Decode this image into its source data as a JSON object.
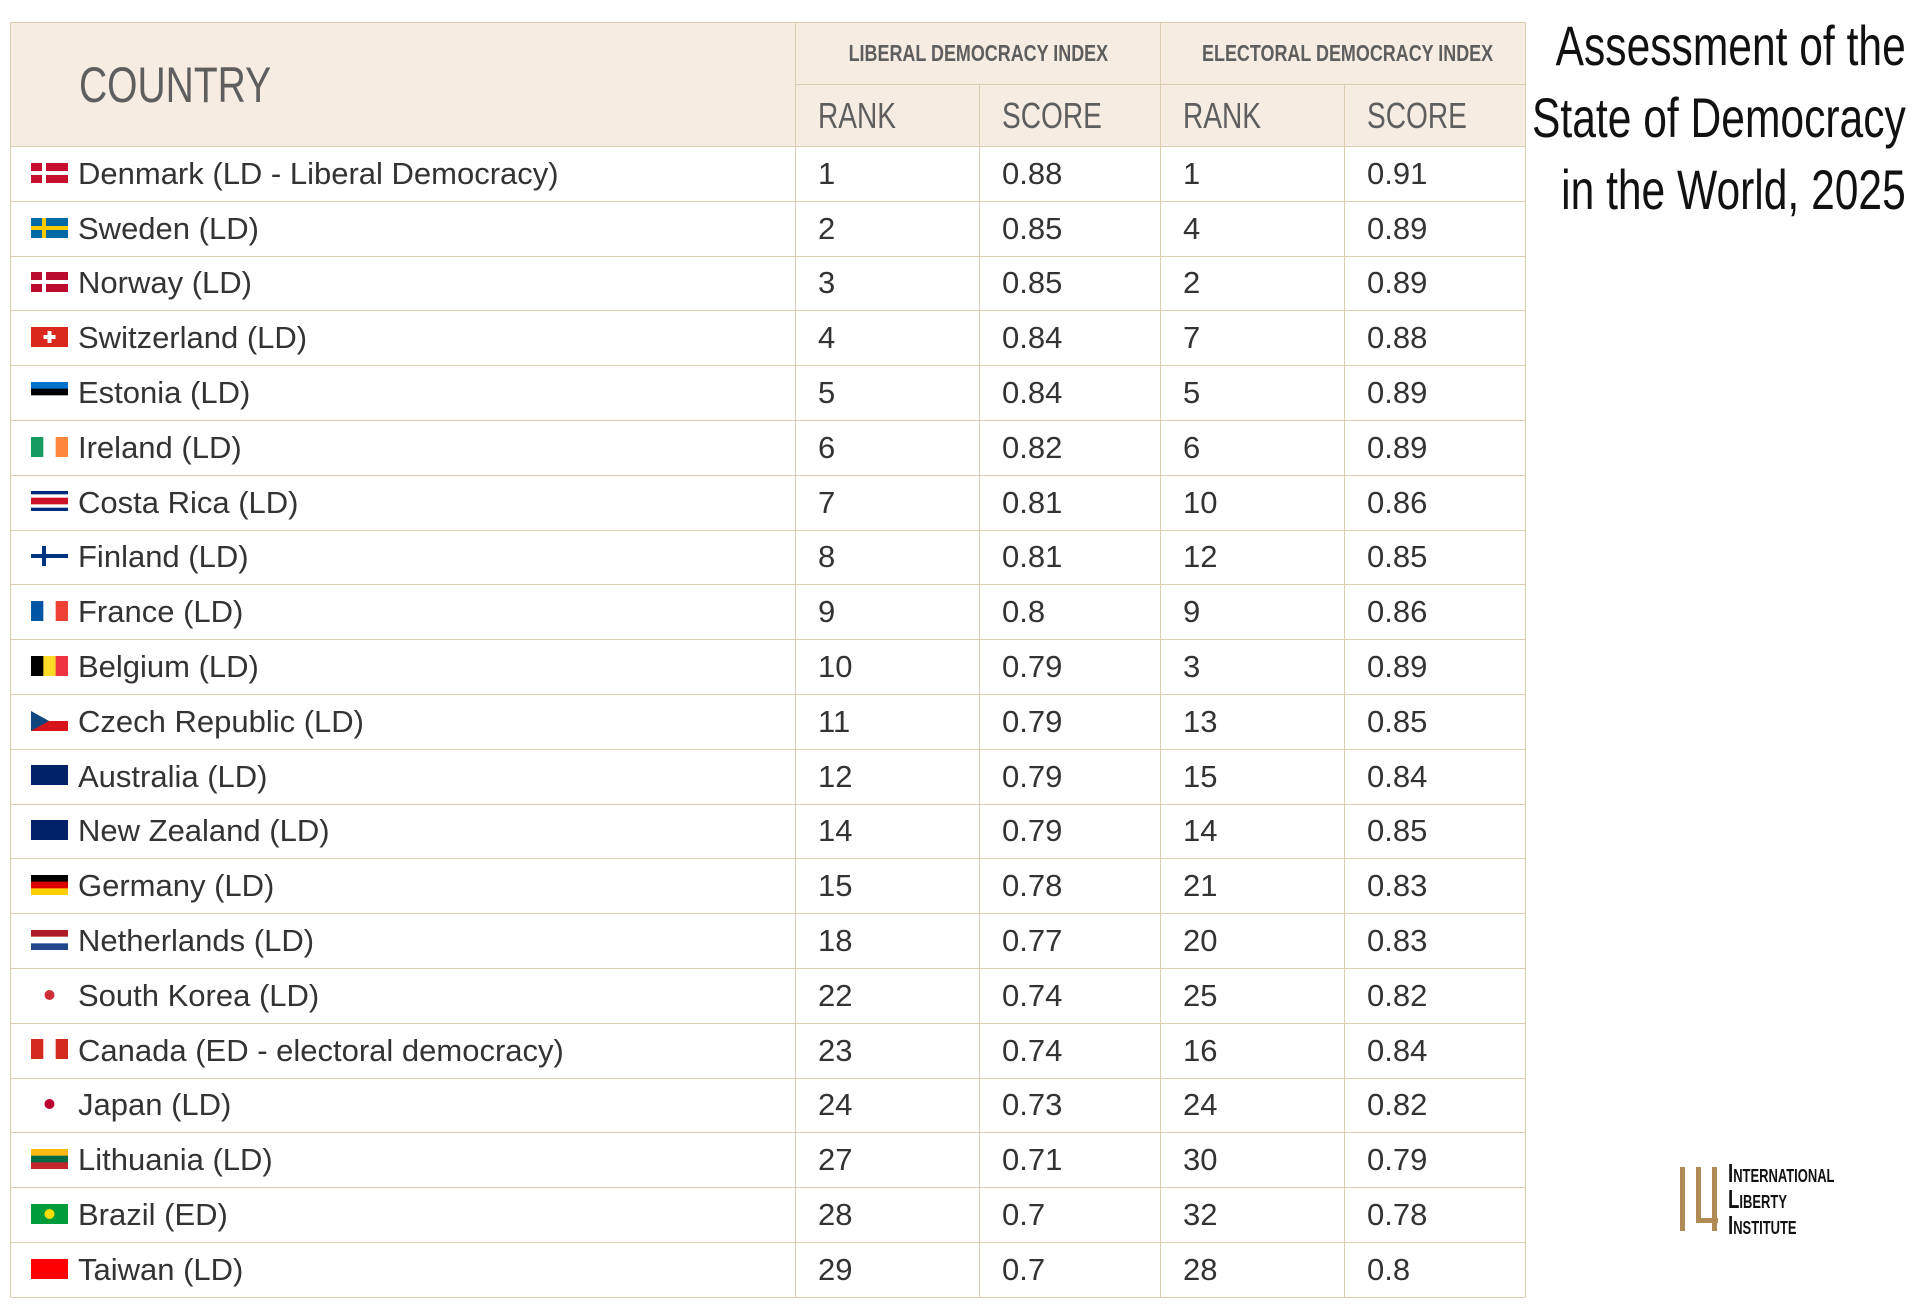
{
  "title": [
    "Assessment of the",
    "State of Democracy",
    "in the World, 2025"
  ],
  "logo": [
    "International",
    "Liberty Institute"
  ],
  "table": {
    "headers": {
      "country": "COUNTRY",
      "groups": [
        "LIBERAL DEMOCRACY INDEX",
        "ELECTORAL DEMOCRACY INDEX"
      ],
      "columns": [
        "RANK",
        "SCORE",
        "RANK",
        "SCORE"
      ]
    },
    "rows": [
      [
        "Denmark (LD - Liberal Democracy)",
        1,
        0.88,
        1,
        0.91
      ],
      [
        "Sweden (LD)",
        2,
        0.85,
        4,
        0.89
      ],
      [
        "Norway (LD)",
        3,
        0.85,
        2,
        0.89
      ],
      [
        "Switzerland (LD)",
        4,
        0.84,
        7,
        0.88
      ],
      [
        "Estonia (LD)",
        5,
        0.84,
        5,
        0.89
      ],
      [
        "Ireland (LD)",
        6,
        0.82,
        6,
        0.89
      ],
      [
        "Costa Rica (LD)",
        7,
        0.81,
        10,
        0.86
      ],
      [
        "Finland (LD)",
        8,
        0.81,
        12,
        0.85
      ],
      [
        "France (LD)",
        9,
        0.8,
        9,
        0.86
      ],
      [
        "Belgium (LD)",
        10,
        0.79,
        3,
        0.89
      ],
      [
        "Czech Republic (LD)",
        11,
        0.79,
        13,
        0.85
      ],
      [
        "Australia (LD)",
        12,
        0.79,
        15,
        0.84
      ],
      [
        "New Zealand (LD)",
        14,
        0.79,
        14,
        0.85
      ],
      [
        "Germany (LD)",
        15,
        0.78,
        21,
        0.83
      ],
      [
        "Netherlands (LD)",
        18,
        0.77,
        20,
        0.83
      ],
      [
        "South Korea (LD)",
        22,
        0.74,
        25,
        0.82
      ],
      [
        "Canada (ED - electoral democracy)",
        23,
        0.74,
        16,
        0.84
      ],
      [
        "Japan (LD)",
        24,
        0.73,
        24,
        0.82
      ],
      [
        "Lithuania (LD)",
        27,
        0.71,
        30,
        0.79
      ],
      [
        "Brazil (ED)",
        28,
        0.7,
        32,
        0.78
      ],
      [
        "Taiwan (LD)",
        29,
        0.7,
        28,
        0.8
      ]
    ]
  }
}
